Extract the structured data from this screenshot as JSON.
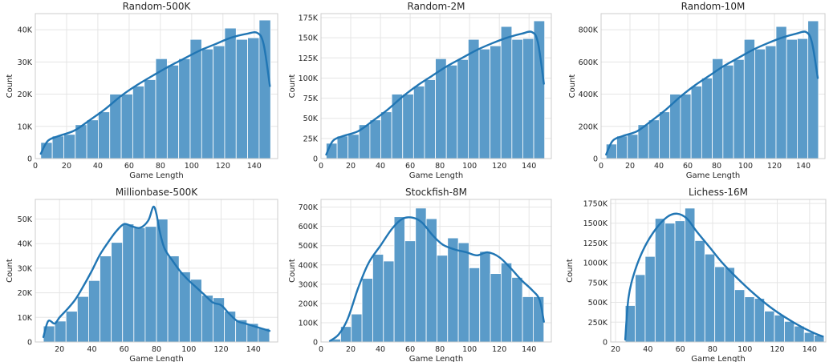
{
  "chart_data": [
    {
      "type": "bar",
      "title": "Random-500K",
      "xlabel": "Game Length",
      "ylabel": "Count",
      "xlim": [
        0,
        155
      ],
      "ylim": [
        0,
        45000
      ],
      "xticks": [
        0,
        20,
        40,
        60,
        80,
        100,
        120,
        140
      ],
      "yticks": [
        0,
        10000,
        20000,
        30000,
        40000
      ],
      "ytick_labels": [
        "0",
        "10K",
        "20K",
        "30K",
        "40K"
      ],
      "bin_start": 3.5,
      "bin_width": 7.35,
      "values": [
        5000,
        7000,
        7500,
        10500,
        12000,
        14500,
        20000,
        20000,
        22500,
        24500,
        31000,
        29000,
        31000,
        37000,
        34000,
        35000,
        40500,
        37000,
        37500,
        43000
      ],
      "kde_x": [
        3.5,
        8,
        15,
        25,
        35,
        45,
        55,
        65,
        75,
        85,
        95,
        105,
        115,
        125,
        135,
        142,
        146,
        150
      ],
      "kde_y": [
        1500,
        5500,
        7000,
        8700,
        12000,
        15500,
        19500,
        22800,
        25700,
        28500,
        31000,
        33500,
        35500,
        37500,
        38700,
        39000,
        35500,
        22500
      ]
    },
    {
      "type": "bar",
      "title": "Random-2M",
      "xlabel": "Game Length",
      "ylabel": "Count",
      "xlim": [
        0,
        155
      ],
      "ylim": [
        0,
        180000
      ],
      "xticks": [
        0,
        20,
        40,
        60,
        80,
        100,
        120,
        140
      ],
      "yticks": [
        0,
        25000,
        50000,
        75000,
        100000,
        125000,
        150000,
        175000
      ],
      "ytick_labels": [
        "0",
        "25K",
        "50K",
        "75K",
        "100K",
        "125K",
        "150K",
        "175K"
      ],
      "bin_start": 3.5,
      "bin_width": 7.35,
      "values": [
        19000,
        28000,
        30000,
        42000,
        48000,
        58000,
        80000,
        80000,
        90000,
        98000,
        124000,
        116000,
        123000,
        148000,
        136000,
        140000,
        164000,
        148000,
        149000,
        171000
      ],
      "kde_x": [
        3.5,
        8,
        15,
        25,
        35,
        45,
        55,
        65,
        75,
        85,
        95,
        105,
        115,
        125,
        135,
        142,
        146,
        150
      ],
      "kde_y": [
        5000,
        22000,
        28000,
        34000,
        47000,
        61000,
        77000,
        91000,
        103000,
        115000,
        125000,
        135000,
        143000,
        150000,
        155000,
        157000,
        144000,
        93000
      ]
    },
    {
      "type": "bar",
      "title": "Random-10M",
      "xlabel": "Game Length",
      "ylabel": "Count",
      "xlim": [
        0,
        155
      ],
      "ylim": [
        0,
        900000
      ],
      "xticks": [
        0,
        20,
        40,
        60,
        80,
        100,
        120,
        140
      ],
      "yticks": [
        0,
        200000,
        400000,
        600000,
        800000
      ],
      "ytick_labels": [
        "0",
        "200K",
        "400K",
        "600K",
        "800K"
      ],
      "bin_start": 3.5,
      "bin_width": 7.35,
      "values": [
        90000,
        140000,
        150000,
        210000,
        240000,
        290000,
        400000,
        400000,
        450000,
        500000,
        620000,
        580000,
        615000,
        740000,
        680000,
        700000,
        820000,
        740000,
        745000,
        855000
      ],
      "kde_x": [
        3.5,
        8,
        15,
        25,
        35,
        45,
        55,
        65,
        75,
        85,
        95,
        105,
        115,
        125,
        135,
        142,
        146,
        150
      ],
      "kde_y": [
        25000,
        110000,
        140000,
        170000,
        235000,
        305000,
        385000,
        455000,
        515000,
        575000,
        625000,
        675000,
        715000,
        750000,
        775000,
        785000,
        720000,
        500000
      ]
    },
    {
      "type": "bar",
      "title": "Millionbase-500K",
      "xlabel": "Game Length",
      "ylabel": "Count",
      "xlim": [
        5,
        155
      ],
      "ylim": [
        0,
        58000
      ],
      "xticks": [
        20,
        40,
        60,
        80,
        100,
        120,
        140
      ],
      "yticks": [
        0,
        10000,
        20000,
        30000,
        40000,
        50000
      ],
      "ytick_labels": [
        "0",
        "10K",
        "20K",
        "30K",
        "40K",
        "50K"
      ],
      "bin_start": 10,
      "bin_width": 7,
      "values": [
        6500,
        8500,
        12500,
        18500,
        25000,
        35000,
        40500,
        48000,
        46500,
        47000,
        50000,
        35000,
        28500,
        25500,
        19000,
        18000,
        12500,
        9000,
        7500,
        5500
      ],
      "kde_x": [
        10,
        13,
        17,
        20,
        25,
        30,
        35,
        40,
        45,
        50,
        55,
        60,
        65,
        70,
        75,
        78,
        80,
        82,
        85,
        90,
        95,
        100,
        105,
        110,
        115,
        120,
        125,
        130,
        135,
        140,
        145,
        150
      ],
      "kde_y": [
        2000,
        8500,
        7500,
        10000,
        13500,
        17500,
        23000,
        29000,
        35500,
        40500,
        45000,
        48000,
        47000,
        46500,
        49500,
        55000,
        52000,
        45000,
        38000,
        33000,
        28500,
        25000,
        22000,
        19000,
        16000,
        15000,
        11500,
        8500,
        7500,
        6500,
        5500,
        4500
      ]
    },
    {
      "type": "bar",
      "title": "Stockfish-8M",
      "xlabel": "Game Length",
      "ylabel": "Count",
      "xlim": [
        0,
        155
      ],
      "ylim": [
        0,
        740000
      ],
      "xticks": [
        0,
        20,
        40,
        60,
        80,
        100,
        120,
        140
      ],
      "yticks": [
        0,
        100000,
        200000,
        300000,
        400000,
        500000,
        600000,
        700000
      ],
      "ytick_labels": [
        "0",
        "100K",
        "200K",
        "300K",
        "400K",
        "500K",
        "600K",
        "700K"
      ],
      "bin_start": 6,
      "bin_width": 7.2,
      "values": [
        15000,
        80000,
        145000,
        330000,
        455000,
        420000,
        650000,
        525000,
        695000,
        640000,
        450000,
        540000,
        515000,
        385000,
        470000,
        355000,
        410000,
        335000,
        235000,
        235000
      ],
      "kde_x": [
        6,
        12,
        18,
        25,
        32,
        40,
        48,
        55,
        62,
        68,
        75,
        82,
        90,
        98,
        105,
        112,
        120,
        128,
        135,
        142,
        147,
        150
      ],
      "kde_y": [
        5000,
        40000,
        120000,
        280000,
        410000,
        500000,
        590000,
        640000,
        645000,
        620000,
        555000,
        505000,
        480000,
        465000,
        450000,
        465000,
        440000,
        380000,
        320000,
        270000,
        220000,
        105000
      ]
    },
    {
      "type": "bar",
      "title": "Lichess-16M",
      "xlabel": "Game Length",
      "ylabel": "Count",
      "xlim": [
        17,
        150
      ],
      "ylim": [
        0,
        1800000
      ],
      "xticks": [
        20,
        40,
        60,
        80,
        100,
        120,
        140
      ],
      "yticks": [
        0,
        250000,
        500000,
        750000,
        1000000,
        1250000,
        1500000,
        1750000
      ],
      "ytick_labels": [
        "0",
        "250K",
        "500K",
        "750K",
        "1000K",
        "1250K",
        "1500K",
        "1750K"
      ],
      "bin_start": 26,
      "bin_width": 6.15,
      "values": [
        460000,
        850000,
        1080000,
        1560000,
        1500000,
        1530000,
        1690000,
        1280000,
        1110000,
        950000,
        940000,
        660000,
        570000,
        550000,
        390000,
        340000,
        260000,
        200000,
        120000,
        85000
      ],
      "kde_x": [
        26,
        28,
        32,
        38,
        45,
        52,
        58,
        64,
        70,
        78,
        86,
        95,
        105,
        115,
        125,
        135,
        143,
        148
      ],
      "kde_y": [
        30000,
        560000,
        900000,
        1200000,
        1430000,
        1580000,
        1620000,
        1560000,
        1400000,
        1200000,
        1000000,
        810000,
        620000,
        450000,
        310000,
        190000,
        110000,
        70000
      ]
    }
  ]
}
